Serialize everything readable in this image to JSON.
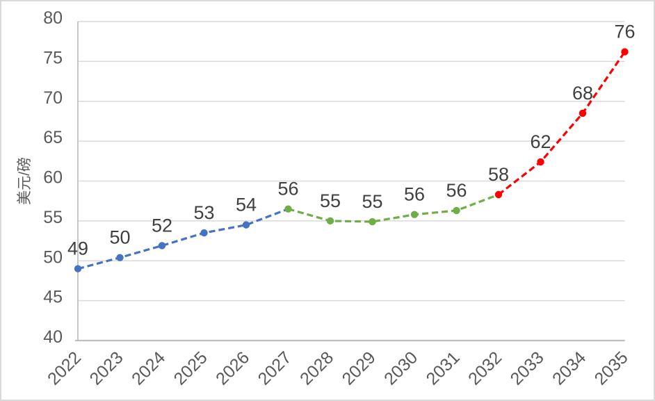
{
  "page": {
    "background": "#FFFFFF",
    "border_color": "#D9D9D9"
  },
  "chart_data": {
    "type": "line",
    "title": "",
    "xlabel": "",
    "ylabel": "美元/磅",
    "categories": [
      "2022",
      "2023",
      "2024",
      "2025",
      "2026",
      "2027",
      "2028",
      "2029",
      "2030",
      "2031",
      "2032",
      "2033",
      "2034",
      "2035"
    ],
    "values": [
      49.0,
      50.4,
      51.9,
      53.5,
      54.5,
      56.5,
      55.0,
      54.9,
      55.8,
      56.3,
      58.3,
      62.4,
      68.5,
      76.2
    ],
    "point_labels": [
      "49",
      "50",
      "52",
      "53",
      "54",
      "56",
      "55",
      "55",
      "56",
      "56",
      "58",
      "62",
      "68",
      "76"
    ],
    "ylim": [
      40,
      80
    ],
    "ytick_step": 5,
    "ytick_labels": [
      "40",
      "45",
      "50",
      "55",
      "60",
      "65",
      "70",
      "75",
      "80"
    ],
    "grid": true,
    "legend_position": "none",
    "line_style": "dashed",
    "marker": "circle",
    "line_segments": [
      {
        "name": "segment-blue",
        "color": "#4472C4",
        "from": 0,
        "to": 5
      },
      {
        "name": "segment-green",
        "color": "#70AD47",
        "from": 5,
        "to": 10
      },
      {
        "name": "segment-red",
        "color": "#FF0000",
        "from": 10,
        "to": 13
      }
    ],
    "marker_segments": [
      {
        "color": "#4472C4",
        "from": 0,
        "to": 4
      },
      {
        "color": "#70AD47",
        "from": 5,
        "to": 9
      },
      {
        "color": "#FF0000",
        "from": 10,
        "to": 13
      }
    ],
    "colors": {
      "gridline": "#D9D9D9",
      "axis_line": "#BFBFBF",
      "tick_text": "#595959",
      "label_text": "#404040"
    }
  }
}
